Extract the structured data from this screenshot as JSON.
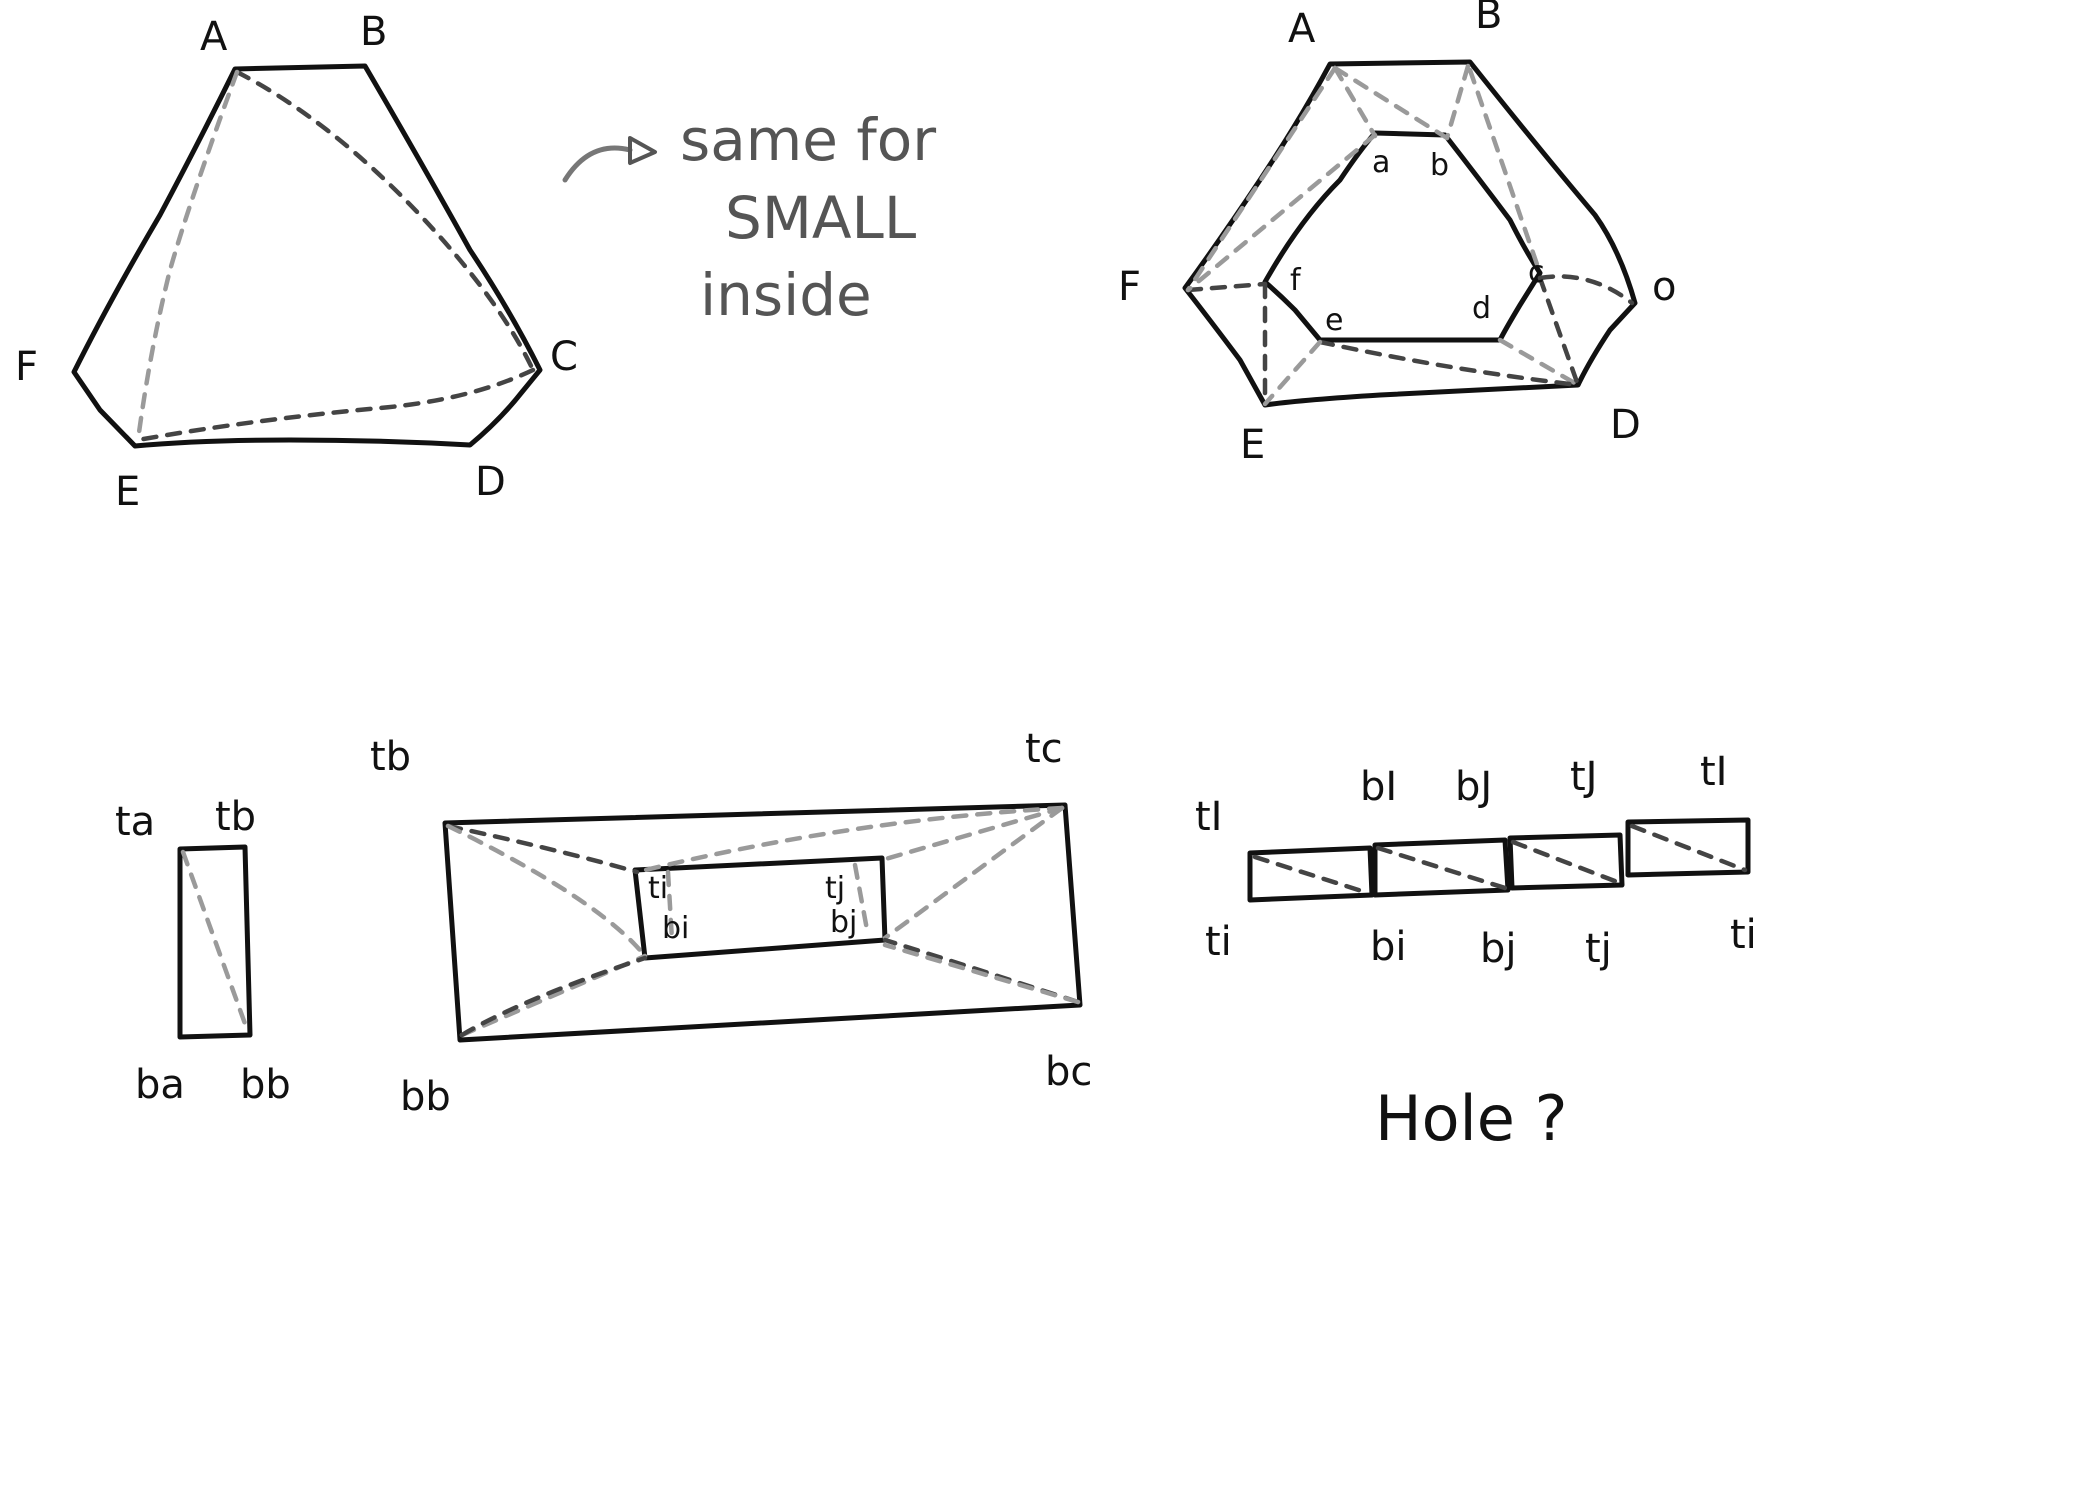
{
  "diagram1": {
    "labels": {
      "A": "A",
      "B": "B",
      "C": "C",
      "D": "D",
      "E": "E",
      "F": "F"
    }
  },
  "annotation": {
    "line1": "same for",
    "line2": "SMALL",
    "line3": "inside"
  },
  "diagram2": {
    "outer_labels": {
      "A": "A",
      "B": "B",
      "C": "o",
      "D": "D",
      "E": "E",
      "F": "F"
    },
    "inner_labels": {
      "a": "a",
      "b": "b",
      "c": "c",
      "d": "d",
      "e": "e",
      "f": "f"
    }
  },
  "diagram3": {
    "ta": "ta",
    "tb": "tb",
    "ba": "ba",
    "bb": "bb"
  },
  "diagram4": {
    "tb": "tb",
    "tc": "tc",
    "bb": "bb",
    "bc": "bc",
    "ti": "ti",
    "tj": "tj",
    "bi": "bi",
    "bj": "bj"
  },
  "diagram5": {
    "top": [
      "tI",
      "bI",
      "bJ",
      "tJ",
      "tI"
    ],
    "bottom": [
      "ti",
      "bi",
      "bj",
      "tj",
      "ti"
    ]
  },
  "hole_text": "Hole ?"
}
